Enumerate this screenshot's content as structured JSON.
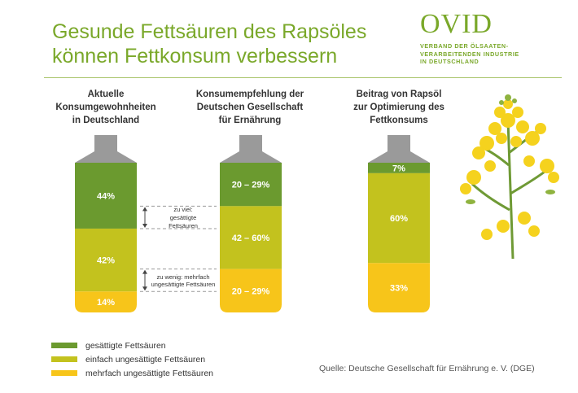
{
  "title": {
    "line1": "Gesunde Fettsäuren des Rapsöles",
    "line2": "können Fettkonsum verbessern"
  },
  "logo": {
    "word": "OVID",
    "sub1": "VERBAND DER ÖLSAATEN-",
    "sub2": "VERARBEITENDEN INDUSTRIE",
    "sub3": "IN DEUTSCHLAND"
  },
  "colors": {
    "saturated": "#6b9a2f",
    "mono": "#c3c21e",
    "poly": "#f7c51a",
    "cap": "#9a9a9a",
    "title": "#7aa82a"
  },
  "chart_data": {
    "type": "bar",
    "stacked": true,
    "categories": [
      "Aktuelle Konsumgewohnheiten in Deutschland",
      "Konsumempfehlung der Deutschen Gesellschaft für Ernährung",
      "Beitrag von Rapsöl zur Optimierung des Fettkonsums"
    ],
    "category_lines": [
      [
        "Aktuelle",
        "Konsumgewohnheiten",
        "in Deutschland"
      ],
      [
        "Konsumempfehlung der",
        "Deutschen Gesellschaft",
        "für Ernährung"
      ],
      [
        "Beitrag von Rapsöl",
        "zur Optimierung des",
        "Fettkonsums"
      ]
    ],
    "series": [
      {
        "name": "gesättigte Fettsäuren",
        "values": [
          44,
          29,
          7
        ],
        "labels": [
          "44%",
          "20 – 29%",
          "7%"
        ]
      },
      {
        "name": "einfach ungesättigte Fettsäuren",
        "values": [
          42,
          42,
          60
        ],
        "labels": [
          "42%",
          "42 – 60%",
          "60%"
        ]
      },
      {
        "name": "mehrfach ungesättigte Fettsäuren",
        "values": [
          14,
          29,
          33
        ],
        "labels": [
          "14%",
          "20 – 29%",
          "33%"
        ]
      }
    ],
    "annotations": [
      {
        "lines": [
          "zu viel:",
          "gesättigte",
          "Fettsäuren"
        ]
      },
      {
        "lines": [
          "zu wenig: mehrfach",
          "ungesättigte Fettsäuren"
        ]
      }
    ],
    "legend": "bottom-left"
  },
  "source": "Quelle: Deutsche Gesellschaft für Ernährung e. V. (DGE)"
}
